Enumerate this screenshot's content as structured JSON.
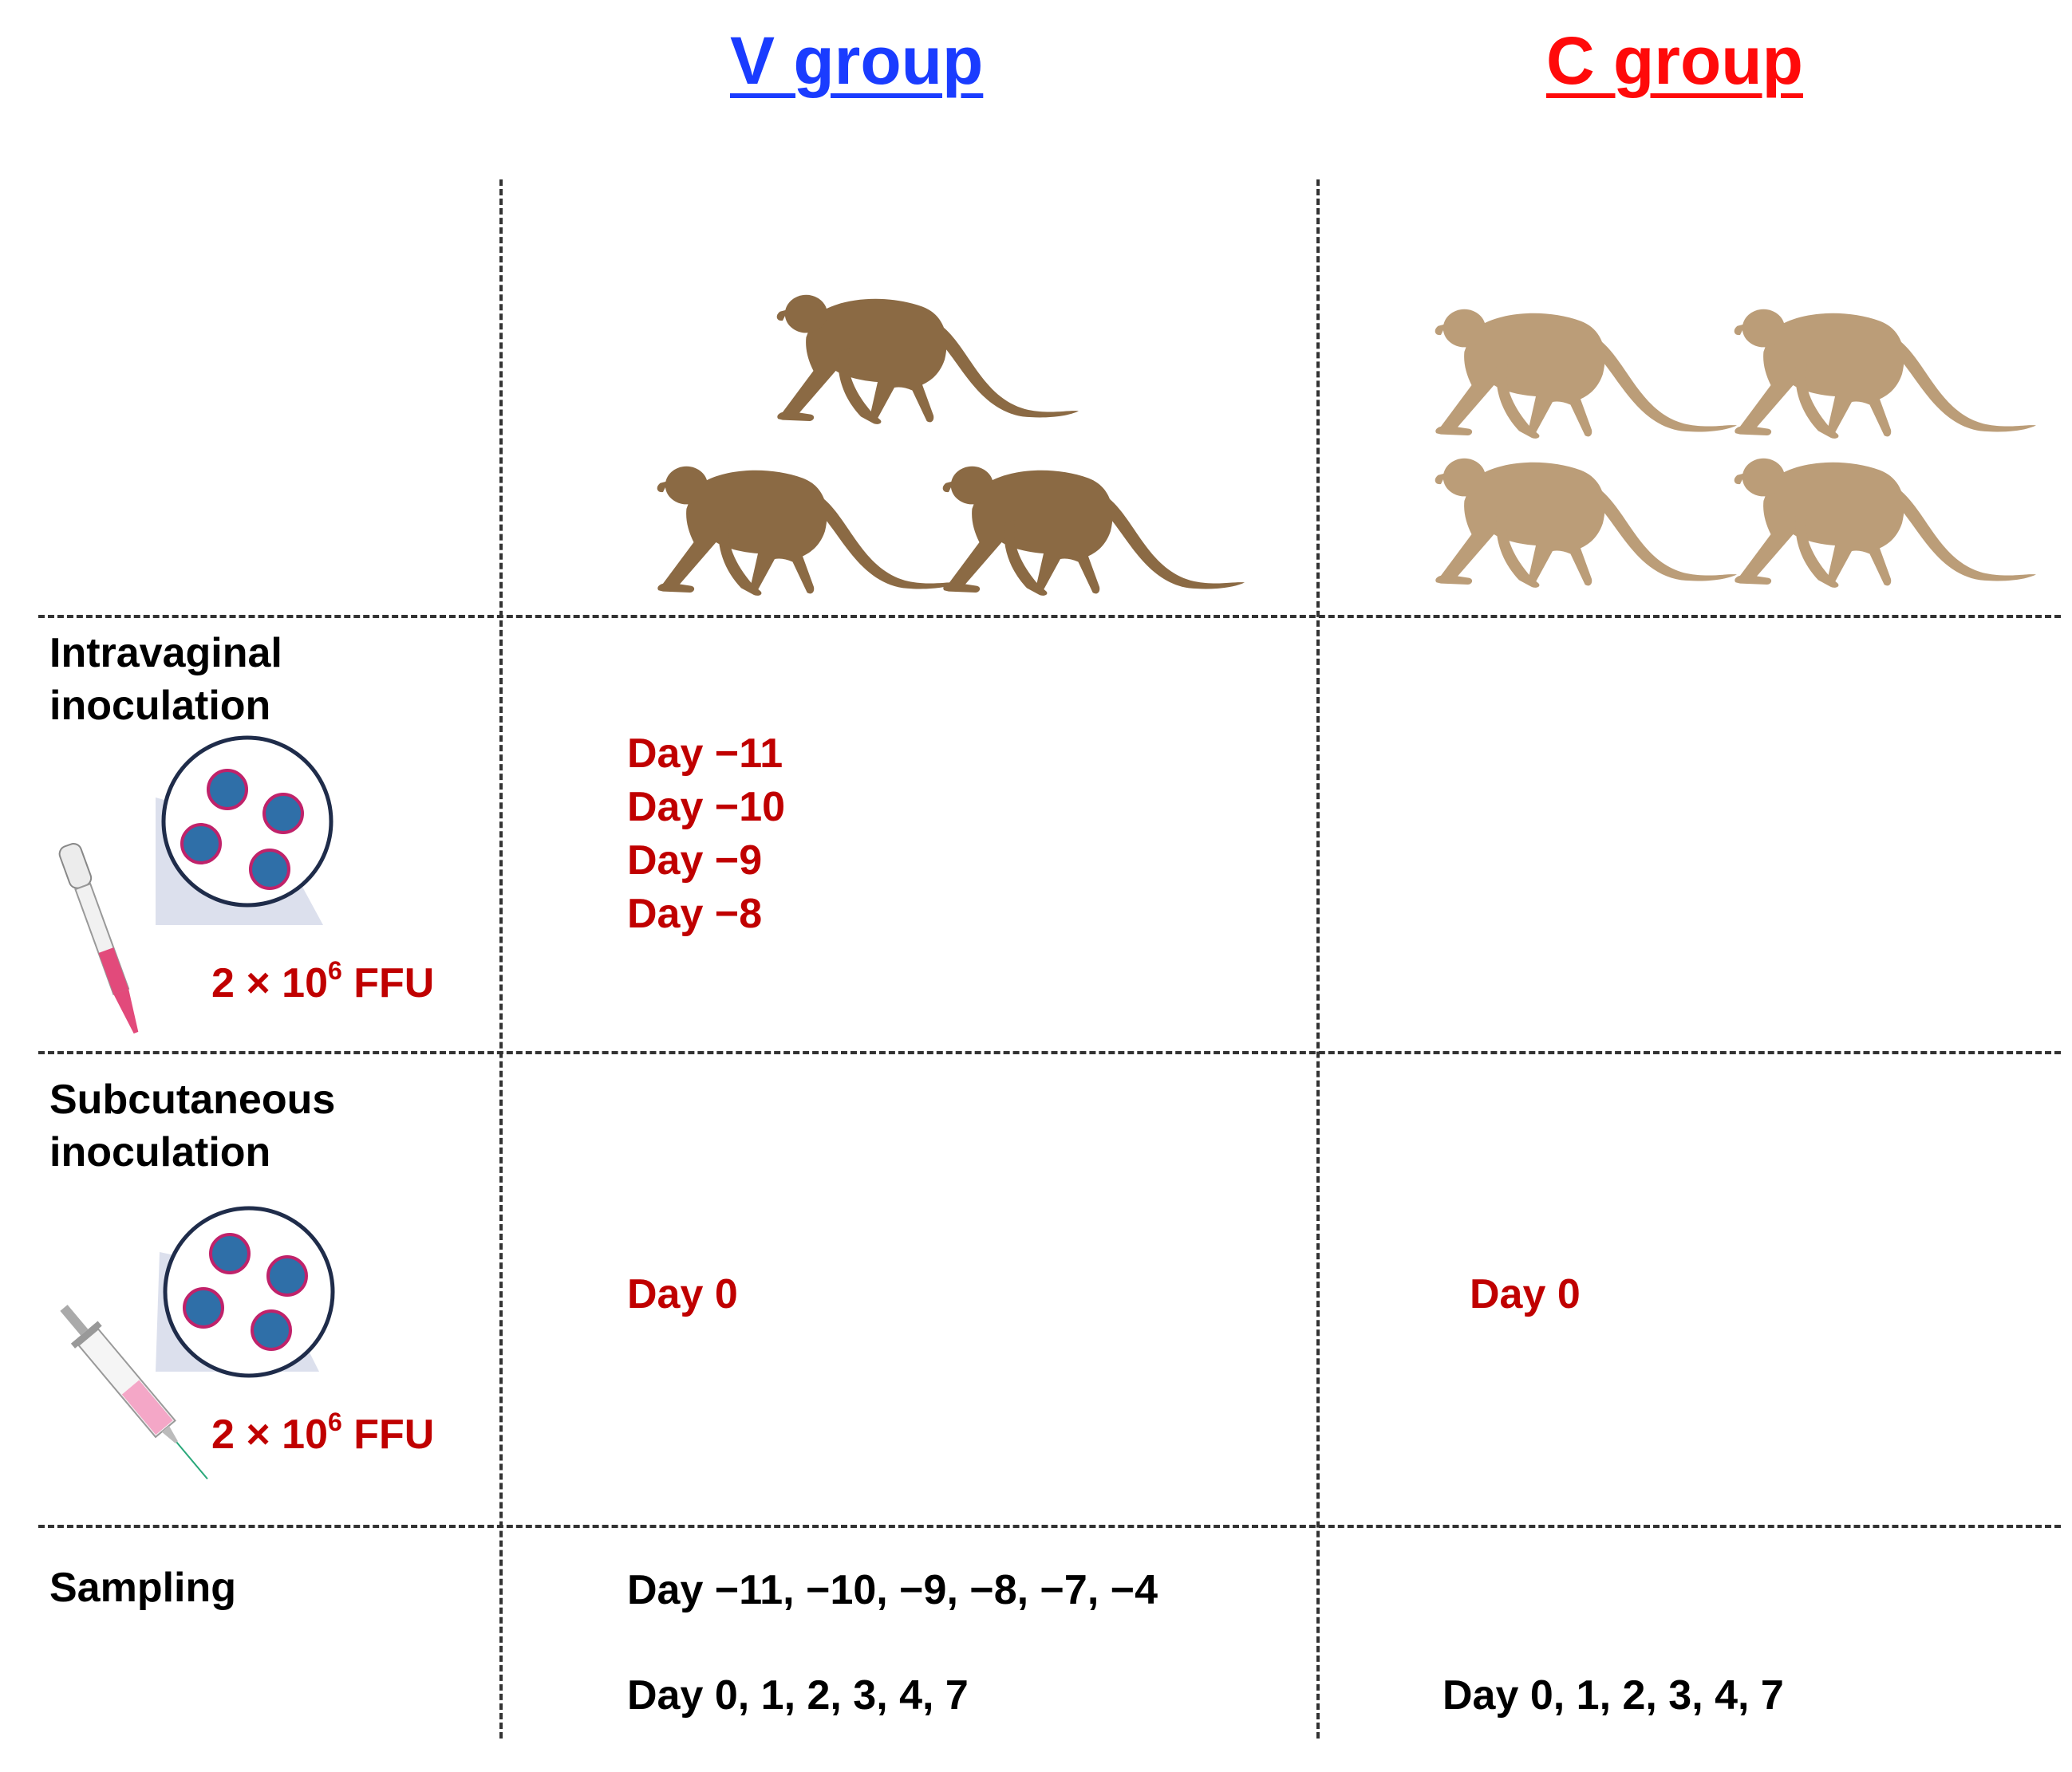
{
  "headers": {
    "v_group": "V group",
    "c_group": "C group",
    "v_color": "#1a3cff",
    "c_color": "#ff0a0a"
  },
  "colors": {
    "v_monkey": "#8b6a44",
    "c_monkey": "#bb9d78",
    "day_text": "#c00000"
  },
  "rows": {
    "intravaginal": {
      "label_line1": "Intravaginal",
      "label_line2": "inoculation",
      "dose_prefix": "2 × 10",
      "dose_exp": "6",
      "dose_suffix": " FFU",
      "icon": "pipette-icon",
      "v_days": [
        "Day −11",
        "Day −10",
        "Day −9",
        "Day −8"
      ]
    },
    "subcutaneous": {
      "label_line1": "Subcutaneous",
      "label_line2": "inoculation",
      "dose_prefix": "2 × 10",
      "dose_exp": "6",
      "dose_suffix": " FFU",
      "icon": "syringe-icon",
      "v_day": "Day 0",
      "c_day": "Day 0"
    },
    "sampling": {
      "label": "Sampling",
      "v_line1": "Day −11, −10, −9, −8, −7, −4",
      "v_line2": "Day 0, 1, 2, 3, 4, 7",
      "c_line1": "Day 0, 1, 2, 3, 4, 7"
    }
  }
}
